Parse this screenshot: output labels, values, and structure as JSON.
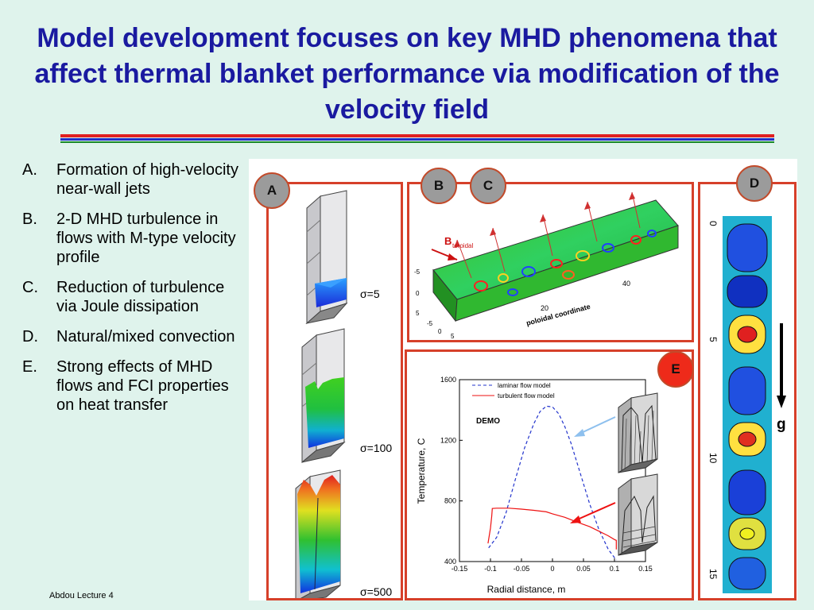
{
  "slide": {
    "title": "Model development focuses on key MHD phenomena that affect thermal blanket performance via modification of the velocity field",
    "bullets": [
      {
        "marker": "A.",
        "text": "Formation of high-velocity near-wall jets"
      },
      {
        "marker": "B.",
        "text": "2-D MHD turbulence in flows with M-type velocity profile"
      },
      {
        "marker": "C.",
        "text": "Reduction of turbulence via Joule dissipation"
      },
      {
        "marker": "D.",
        "text": "Natural/mixed convection"
      },
      {
        "marker": "E.",
        "text": "Strong effects of MHD flows and FCI properties on heat transfer"
      }
    ],
    "footer": "Abdou Lecture 4"
  },
  "figure": {
    "badges": {
      "a": "A",
      "b": "B",
      "c": "C",
      "d": "D",
      "e": "E"
    },
    "panel_a": {
      "labels": [
        "σ=5",
        "σ=100",
        "σ=500"
      ]
    },
    "panel_bc": {
      "b_label": "B",
      "b_subscript": "toroidal",
      "axis_label": "poloidal coordinate",
      "ticks_long": [
        "20",
        "40"
      ],
      "ticks_side": [
        "-5",
        "0",
        "5",
        "-5",
        "0",
        "5"
      ]
    },
    "panel_d": {
      "axis_ticks": [
        "0",
        "5",
        "10",
        "15"
      ],
      "gravity_label": "g"
    },
    "panel_e": {
      "chart_data": {
        "type": "line",
        "xlabel": "Radial distance, m",
        "ylabel": "Temperature, C",
        "xlim": [
          -0.15,
          0.15
        ],
        "ylim": [
          400,
          1600
        ],
        "x_ticks": [
          "-0.15",
          "-0.1",
          "-0.05",
          "0",
          "0.05",
          "0.1",
          "0.15"
        ],
        "y_ticks": [
          "400",
          "800",
          "1200",
          "1600"
        ],
        "annotation": "DEMO",
        "series": [
          {
            "name": "laminar flow model",
            "style": "dashed",
            "color": "#2233cc",
            "x": [
              -0.103,
              -0.09,
              -0.075,
              -0.06,
              -0.045,
              -0.03,
              -0.02,
              -0.01,
              0.0,
              0.01,
              0.02,
              0.03,
              0.045,
              0.06,
              0.075,
              0.09,
              0.103
            ],
            "y": [
              490,
              560,
              720,
              940,
              1150,
              1310,
              1390,
              1425,
              1420,
              1375,
              1290,
              1180,
              980,
              780,
              610,
              480,
              410
            ]
          },
          {
            "name": "turbulent flow model",
            "style": "solid",
            "color": "#ee1111",
            "x": [
              -0.104,
              -0.1,
              -0.098,
              -0.097,
              -0.09,
              -0.07,
              -0.05,
              -0.03,
              -0.01,
              0.0,
              0.02,
              0.04,
              0.06,
              0.075,
              0.09,
              0.1,
              0.103,
              0.103
            ],
            "y": [
              520,
              620,
              700,
              750,
              752,
              752,
              746,
              738,
              728,
              715,
              692,
              660,
              630,
              600,
              570,
              545,
              540,
              480
            ]
          }
        ]
      }
    }
  }
}
